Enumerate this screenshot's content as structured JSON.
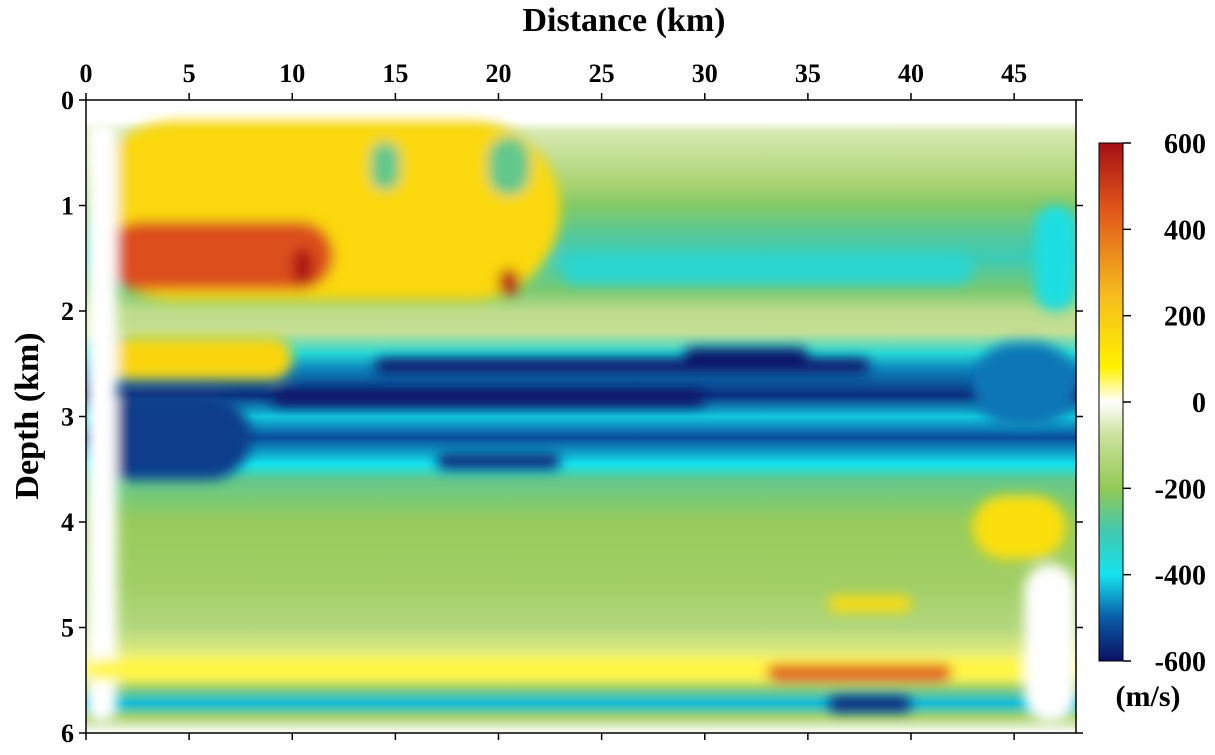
{
  "chart_data": {
    "type": "heatmap",
    "title": "",
    "xlabel": "Distance (km)",
    "ylabel": "Depth (km)",
    "x_axis_position": "top",
    "y_inverted": true,
    "xlim": [
      0,
      48
    ],
    "ylim": [
      0,
      6
    ],
    "xticks": [
      "0",
      "5",
      "10",
      "15",
      "20",
      "25",
      "30",
      "35",
      "40",
      "45"
    ],
    "yticks": [
      "0",
      "1",
      "2",
      "3",
      "4",
      "5",
      "6"
    ],
    "colorbar": {
      "label": "(m/s)",
      "range": [
        -600,
        600
      ],
      "ticks": [
        "600",
        "400",
        "200",
        "0",
        "-200",
        "-400",
        "-600"
      ],
      "colormap": [
        {
          "value": 600,
          "color": "#a50f15"
        },
        {
          "value": 450,
          "color": "#e0541a"
        },
        {
          "value": 250,
          "color": "#f5bb1e"
        },
        {
          "value": 80,
          "color": "#fff200"
        },
        {
          "value": 0,
          "color": "#ffffff"
        },
        {
          "value": -80,
          "color": "#c9e19a"
        },
        {
          "value": -200,
          "color": "#93c955"
        },
        {
          "value": -300,
          "color": "#42c8b0"
        },
        {
          "value": -400,
          "color": "#14e3ee"
        },
        {
          "value": -500,
          "color": "#0a5ca8"
        },
        {
          "value": -600,
          "color": "#0b1060"
        }
      ]
    },
    "depth_profile": [
      {
        "depth": 0.0,
        "value": 0
      },
      {
        "depth": 0.2,
        "value": 0
      },
      {
        "depth": 0.3,
        "value": -60
      },
      {
        "depth": 0.8,
        "value": -150
      },
      {
        "depth": 1.0,
        "value": -220
      },
      {
        "depth": 1.3,
        "value": -280
      },
      {
        "depth": 1.5,
        "value": -310
      },
      {
        "depth": 1.8,
        "value": -230
      },
      {
        "depth": 2.0,
        "value": -110
      },
      {
        "depth": 2.2,
        "value": -90
      },
      {
        "depth": 2.4,
        "value": -360
      },
      {
        "depth": 2.55,
        "value": -470
      },
      {
        "depth": 2.8,
        "value": -560
      },
      {
        "depth": 3.0,
        "value": -420
      },
      {
        "depth": 3.2,
        "value": -520
      },
      {
        "depth": 3.45,
        "value": -400
      },
      {
        "depth": 3.6,
        "value": -260
      },
      {
        "depth": 4.0,
        "value": -190
      },
      {
        "depth": 4.6,
        "value": -170
      },
      {
        "depth": 5.0,
        "value": -130
      },
      {
        "depth": 5.4,
        "value": 40
      },
      {
        "depth": 5.55,
        "value": -160
      },
      {
        "depth": 5.72,
        "value": -430
      },
      {
        "depth": 5.85,
        "value": -150
      },
      {
        "depth": 6.0,
        "value": 0
      }
    ],
    "anomalies": [
      {
        "x0": 0,
        "x1": 23,
        "z0": 0.2,
        "z1": 1.9,
        "value": 160
      },
      {
        "x0": 1,
        "x1": 12,
        "z0": 1.15,
        "z1": 1.8,
        "value": 460
      },
      {
        "x0": 10,
        "x1": 11,
        "z0": 1.4,
        "z1": 1.75,
        "value": 580
      },
      {
        "x0": 20,
        "x1": 21,
        "z0": 1.6,
        "z1": 1.85,
        "value": 540
      },
      {
        "x0": 13.8,
        "x1": 15.2,
        "z0": 0.4,
        "z1": 0.85,
        "value": -260
      },
      {
        "x0": 19.5,
        "x1": 21.5,
        "z0": 0.35,
        "z1": 0.9,
        "value": -260
      },
      {
        "x0": 0,
        "x1": 10,
        "z0": 2.25,
        "z1": 2.65,
        "value": 170
      },
      {
        "x0": 0,
        "x1": 8,
        "z0": 2.8,
        "z1": 3.6,
        "value": -540
      },
      {
        "x0": 14,
        "x1": 38,
        "z0": 2.45,
        "z1": 2.6,
        "value": -580
      },
      {
        "x0": 29,
        "x1": 35,
        "z0": 2.35,
        "z1": 2.5,
        "value": -590
      },
      {
        "x0": 9,
        "x1": 30,
        "z0": 2.75,
        "z1": 2.9,
        "value": -590
      },
      {
        "x0": 17,
        "x1": 23,
        "z0": 3.35,
        "z1": 3.5,
        "value": -570
      },
      {
        "x0": 43,
        "x1": 48,
        "z0": 2.3,
        "z1": 3.1,
        "value": -480
      },
      {
        "x0": 43,
        "x1": 47.5,
        "z0": 3.75,
        "z1": 4.35,
        "value": 140
      },
      {
        "x0": 0,
        "x1": 1.5,
        "z0": 0.2,
        "z1": 5.9,
        "value": 0
      },
      {
        "x0": 0,
        "x1": 48,
        "z0": 5.3,
        "z1": 5.5,
        "value": 60
      },
      {
        "x0": 33,
        "x1": 42,
        "z0": 5.35,
        "z1": 5.5,
        "value": 450
      },
      {
        "x0": 36,
        "x1": 40,
        "z0": 5.65,
        "z1": 5.8,
        "value": -570
      },
      {
        "x0": 45.5,
        "x1": 48,
        "z0": 4.4,
        "z1": 5.9,
        "value": 0
      },
      {
        "x0": 36,
        "x1": 40,
        "z0": 4.7,
        "z1": 4.85,
        "value": 150
      },
      {
        "x0": 46,
        "x1": 48,
        "z0": 1.0,
        "z1": 2.0,
        "value": -380
      },
      {
        "x0": 23,
        "x1": 43,
        "z0": 1.45,
        "z1": 1.75,
        "value": -350
      }
    ]
  }
}
